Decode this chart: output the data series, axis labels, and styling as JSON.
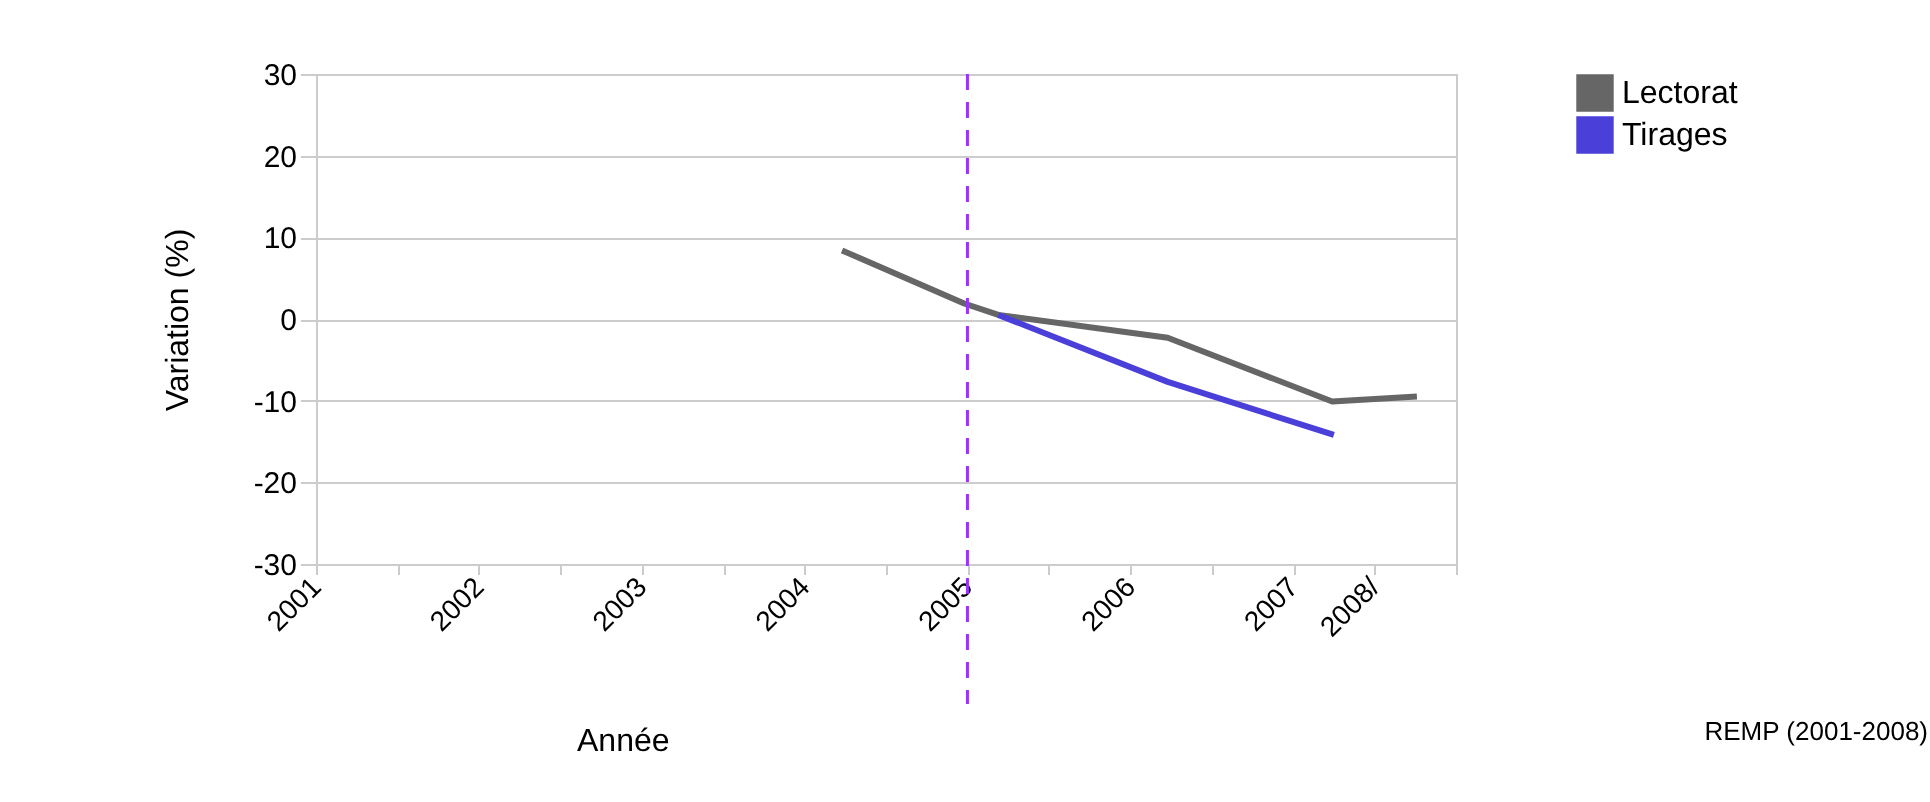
{
  "chart_data": {
    "type": "line",
    "xlabel": "Année",
    "ylabel": "Variation (%)",
    "xlim": [
      2001,
      2008
    ],
    "xticks": [
      2001,
      {
        "value": 2001.5,
        "label": null
      },
      2002,
      {
        "value": 2002.5,
        "label": null
      },
      2003,
      {
        "value": 2003.5,
        "label": null
      },
      2004,
      {
        "value": 2004.5,
        "label": null
      },
      2005,
      {
        "value": 2005.5,
        "label": null
      },
      2006,
      {
        "value": 2006.5,
        "label": null
      },
      2007,
      {
        "value": 2007.5,
        "label": "2008/"
      },
      {
        "value": 2008,
        "label": null
      }
    ],
    "ylim": [
      -30,
      30
    ],
    "yticks": [
      -30,
      -20,
      -10,
      0,
      10,
      20,
      30
    ],
    "grid": "y",
    "legend": "right",
    "line_style": "solid",
    "marker": "none",
    "series": [
      {
        "name": "Lectorat",
        "color": "#666666",
        "x": [
          2004.23,
          2004.98,
          2005.19,
          2006.23,
          2007.24,
          2007.76
        ],
        "values": [
          8.4,
          1.9,
          0.5,
          -2.3,
          -10.1,
          -9.5
        ]
      },
      {
        "name": "Tirages",
        "color": "#4a3fd8",
        "x": [
          2005.19,
          2006.23,
          2007.25
        ],
        "values": [
          0.5,
          -7.7,
          -14.2
        ]
      }
    ],
    "ref_lines": [
      {
        "axis": "x",
        "value": 2005,
        "color": "#9933ff",
        "line_style": "dashed"
      }
    ],
    "annotations": [
      "REMP (2001-2008)"
    ]
  }
}
